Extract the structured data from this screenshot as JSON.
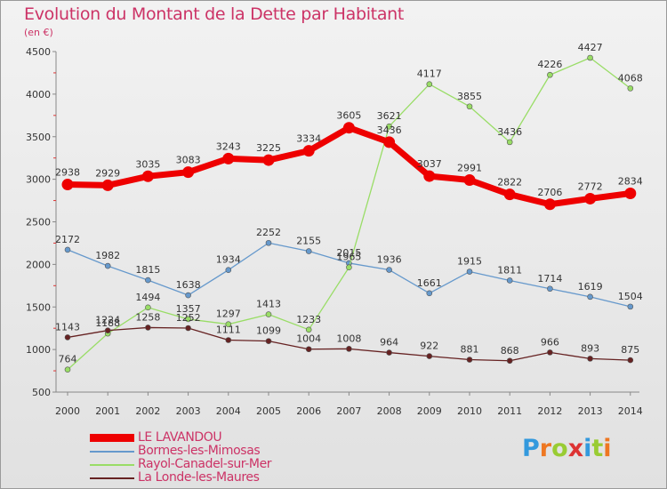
{
  "chart_data": {
    "type": "line",
    "title": "Evolution du Montant de la Dette par Habitant",
    "subtitle": "(en €)",
    "x": [
      "2000",
      "2001",
      "2002",
      "2003",
      "2004",
      "2005",
      "2006",
      "2007",
      "2008",
      "2009",
      "2010",
      "2011",
      "2012",
      "2013",
      "2014"
    ],
    "ylim": [
      500,
      4500
    ],
    "yticks": [
      "500",
      "1000",
      "1500",
      "2000",
      "2500",
      "3000",
      "3500",
      "4000",
      "4500"
    ],
    "grid": false,
    "legend_position": "bottom-left",
    "series": [
      {
        "name": "LE LAVANDOU",
        "color": "#ee0000",
        "emphasis": true,
        "values": [
          2938,
          2929,
          3035,
          3083,
          3243,
          3225,
          3334,
          3605,
          3436,
          3037,
          2991,
          2822,
          2706,
          2772,
          2834
        ]
      },
      {
        "name": "Bormes-les-Mimosas",
        "color": "#6699cc",
        "emphasis": false,
        "values": [
          2172,
          1982,
          1815,
          1638,
          1934,
          2252,
          2155,
          2015,
          1936,
          1661,
          1915,
          1811,
          1714,
          1619,
          1504
        ]
      },
      {
        "name": "Rayol-Canadel-sur-Mer",
        "color": "#99dd66",
        "emphasis": false,
        "values": [
          764,
          1188,
          1494,
          1357,
          1297,
          1413,
          1233,
          1965,
          3621,
          4117,
          3855,
          3436,
          4226,
          4427,
          4068
        ]
      },
      {
        "name": "La Londe-les-Maures",
        "color": "#662222",
        "emphasis": false,
        "values": [
          1143,
          1224,
          1258,
          1252,
          1111,
          1099,
          1004,
          1008,
          964,
          922,
          881,
          868,
          966,
          893,
          875
        ]
      }
    ]
  },
  "logo": {
    "letters": [
      "P",
      "r",
      "o",
      "x",
      "i",
      "t",
      "i"
    ],
    "colors": [
      "#3399dd",
      "#ee7722",
      "#99cc33",
      "#dd3333",
      "#3399dd",
      "#99cc33",
      "#ee7722"
    ]
  }
}
